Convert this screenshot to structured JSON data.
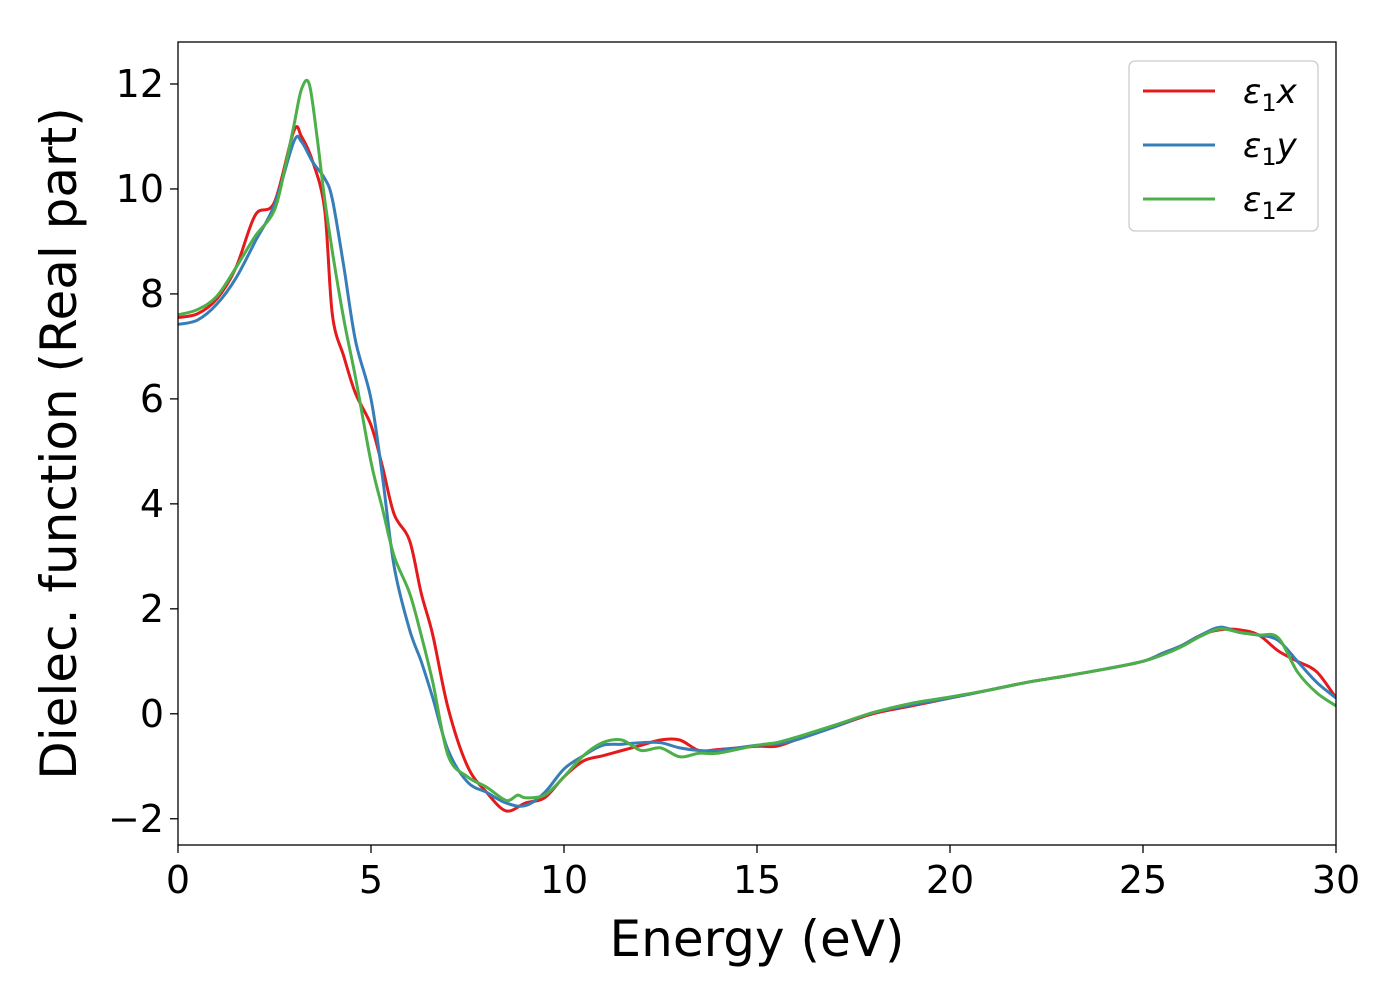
{
  "chart_data": {
    "type": "line",
    "title": "",
    "xlabel": "Energy (eV)",
    "ylabel": "Dielec. function (Real part)",
    "xlim": [
      0,
      30
    ],
    "ylim": [
      -2.5,
      12.8
    ],
    "xticks": [
      0,
      5,
      10,
      15,
      20,
      25,
      30
    ],
    "yticks": [
      -2,
      0,
      2,
      4,
      6,
      8,
      10,
      12
    ],
    "xtick_labels": [
      "0",
      "5",
      "10",
      "15",
      "20",
      "25",
      "30"
    ],
    "ytick_labels": [
      "−2",
      "0",
      "2",
      "4",
      "6",
      "8",
      "10",
      "12"
    ],
    "grid": false,
    "legend_position": "top-right",
    "series": [
      {
        "name": "ε₁x",
        "legend_base": "ε",
        "legend_sub": "1",
        "legend_suffix": "x",
        "color": "#e41a1c",
        "x": [
          0,
          0.5,
          1.0,
          1.5,
          2.0,
          2.5,
          3.0,
          3.2,
          3.5,
          3.8,
          4.0,
          4.3,
          4.6,
          5.0,
          5.3,
          5.6,
          6.0,
          6.3,
          6.6,
          7.0,
          7.5,
          8.0,
          8.5,
          9.0,
          9.5,
          10.0,
          10.5,
          11.0,
          11.5,
          12.0,
          12.5,
          13.0,
          13.5,
          14.0,
          15.0,
          15.5,
          16.0,
          17.0,
          18.0,
          19.0,
          20.0,
          21.0,
          22.0,
          23.0,
          24.0,
          25.0,
          25.5,
          26.0,
          26.5,
          27.0,
          27.5,
          28.0,
          28.5,
          29.0,
          29.5,
          30.0
        ],
        "y": [
          7.55,
          7.62,
          7.9,
          8.5,
          9.5,
          9.75,
          11.1,
          11.0,
          10.5,
          9.6,
          7.6,
          6.8,
          6.1,
          5.5,
          4.7,
          3.8,
          3.3,
          2.3,
          1.5,
          0.1,
          -1.0,
          -1.5,
          -1.85,
          -1.7,
          -1.6,
          -1.2,
          -0.9,
          -0.8,
          -0.7,
          -0.6,
          -0.5,
          -0.5,
          -0.7,
          -0.68,
          -0.62,
          -0.62,
          -0.5,
          -0.25,
          0.0,
          0.15,
          0.3,
          0.45,
          0.6,
          0.72,
          0.85,
          1.0,
          1.15,
          1.3,
          1.5,
          1.6,
          1.6,
          1.5,
          1.2,
          1.0,
          0.8,
          0.3
        ]
      },
      {
        "name": "ε₁y",
        "legend_base": "ε",
        "legend_sub": "1",
        "legend_suffix": "y",
        "color": "#377eb8",
        "x": [
          0,
          0.5,
          1.0,
          1.5,
          2.0,
          2.5,
          3.0,
          3.2,
          3.5,
          3.8,
          4.0,
          4.3,
          4.6,
          5.0,
          5.3,
          5.6,
          6.0,
          6.3,
          6.6,
          7.0,
          7.5,
          8.0,
          8.5,
          9.0,
          9.5,
          10.0,
          10.5,
          11.0,
          11.5,
          12.0,
          12.5,
          13.0,
          13.5,
          14.0,
          15.0,
          15.5,
          16.0,
          17.0,
          18.0,
          19.0,
          20.0,
          21.0,
          22.0,
          23.0,
          24.0,
          25.0,
          25.5,
          26.0,
          26.5,
          27.0,
          27.5,
          28.0,
          28.5,
          29.0,
          29.5,
          30.0
        ],
        "y": [
          7.42,
          7.5,
          7.8,
          8.3,
          9.0,
          9.7,
          10.9,
          10.9,
          10.5,
          10.2,
          9.8,
          8.5,
          7.1,
          6.0,
          4.5,
          2.8,
          1.6,
          1.0,
          0.3,
          -0.7,
          -1.3,
          -1.5,
          -1.7,
          -1.75,
          -1.5,
          -1.05,
          -0.8,
          -0.6,
          -0.58,
          -0.55,
          -0.55,
          -0.65,
          -0.7,
          -0.7,
          -0.6,
          -0.58,
          -0.5,
          -0.25,
          0.02,
          0.17,
          0.3,
          0.45,
          0.6,
          0.72,
          0.85,
          1.0,
          1.15,
          1.3,
          1.5,
          1.65,
          1.55,
          1.5,
          1.4,
          1.0,
          0.6,
          0.3
        ]
      },
      {
        "name": "ε₁z",
        "legend_base": "ε",
        "legend_sub": "1",
        "legend_suffix": "z",
        "color": "#4daf4a",
        "x": [
          0,
          0.5,
          1.0,
          1.5,
          2.0,
          2.5,
          2.8,
          3.0,
          3.2,
          3.4,
          3.6,
          3.8,
          4.0,
          4.3,
          4.6,
          5.0,
          5.3,
          5.6,
          6.0,
          6.3,
          6.6,
          7.0,
          7.5,
          8.0,
          8.5,
          8.8,
          9.0,
          9.5,
          10.0,
          10.5,
          11.0,
          11.5,
          12.0,
          12.5,
          13.0,
          13.5,
          14.0,
          15.0,
          15.5,
          16.0,
          17.0,
          18.0,
          19.0,
          20.0,
          21.0,
          22.0,
          23.0,
          24.0,
          25.0,
          25.5,
          26.0,
          26.5,
          27.0,
          27.5,
          28.0,
          28.5,
          29.0,
          29.5,
          30.0
        ],
        "y": [
          7.6,
          7.7,
          7.95,
          8.5,
          9.1,
          9.6,
          10.5,
          11.2,
          11.9,
          12.0,
          11.0,
          9.8,
          8.8,
          7.5,
          6.4,
          4.8,
          3.9,
          3.0,
          2.3,
          1.5,
          0.6,
          -0.8,
          -1.2,
          -1.4,
          -1.65,
          -1.55,
          -1.6,
          -1.55,
          -1.2,
          -0.8,
          -0.55,
          -0.5,
          -0.7,
          -0.65,
          -0.82,
          -0.75,
          -0.75,
          -0.6,
          -0.55,
          -0.45,
          -0.22,
          0.02,
          0.2,
          0.32,
          0.45,
          0.6,
          0.72,
          0.85,
          1.0,
          1.12,
          1.28,
          1.48,
          1.62,
          1.55,
          1.5,
          1.45,
          0.8,
          0.4,
          0.15
        ]
      }
    ]
  }
}
